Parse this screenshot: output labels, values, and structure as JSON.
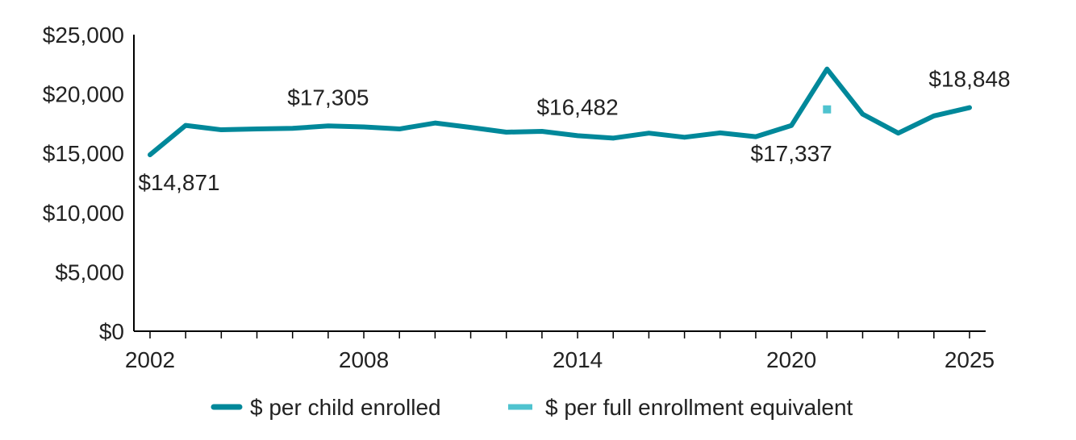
{
  "chart_data": {
    "type": "line",
    "title": "",
    "xlabel": "",
    "ylabel": "",
    "ylim": [
      0,
      25000
    ],
    "xlim": [
      2002,
      2025
    ],
    "y_ticks": [
      "$0",
      "$5,000",
      "$10,000",
      "$15,000",
      "$20,000",
      "$25,000"
    ],
    "y_tick_values": [
      0,
      5000,
      10000,
      15000,
      20000,
      25000
    ],
    "x_tick_labels": [
      "2002",
      "2008",
      "2014",
      "2020",
      "2025"
    ],
    "x_tick_values": [
      2002,
      2008,
      2014,
      2020,
      2025
    ],
    "grid": false,
    "legend_position": "bottom",
    "series": [
      {
        "name": "$ per child enrolled",
        "color": "#00889a",
        "x": [
          2002,
          2003,
          2004,
          2005,
          2006,
          2007,
          2008,
          2009,
          2010,
          2011,
          2012,
          2013,
          2014,
          2015,
          2016,
          2017,
          2018,
          2019,
          2020,
          2021,
          2022,
          2023,
          2024,
          2025
        ],
        "values": [
          14871,
          17350,
          16980,
          17050,
          17100,
          17305,
          17220,
          17050,
          17550,
          17180,
          16780,
          16850,
          16482,
          16280,
          16700,
          16350,
          16720,
          16400,
          17337,
          22100,
          18300,
          16700,
          18150,
          18848
        ]
      },
      {
        "name": "$ per full enrollment equivalent",
        "color": "#4fc3cf",
        "x": [
          2021
        ],
        "values": [
          18700
        ]
      }
    ],
    "annotations": [
      {
        "text": "$14,871",
        "x": 2002,
        "position": "below"
      },
      {
        "text": "$17,305",
        "x": 2007,
        "position": "above"
      },
      {
        "text": "$16,482",
        "x": 2014,
        "position": "above"
      },
      {
        "text": "$17,337",
        "x": 2020,
        "position": "below"
      },
      {
        "text": "$18,848",
        "x": 2025,
        "position": "above"
      }
    ]
  }
}
